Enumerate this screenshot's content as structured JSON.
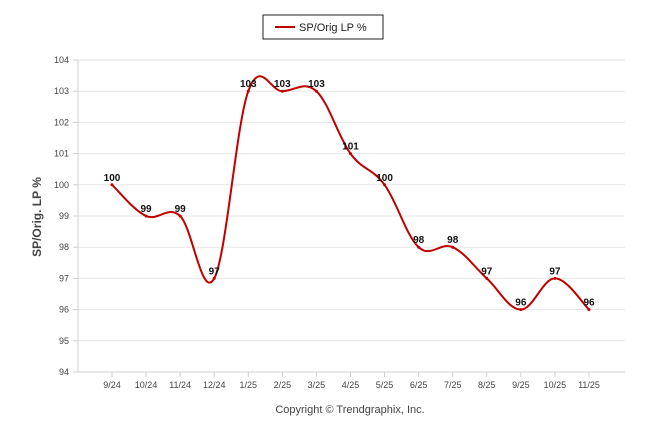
{
  "chart_data": {
    "type": "line",
    "title": "",
    "categories": [
      "9/24",
      "10/24",
      "11/24",
      "12/24",
      "1/25",
      "2/25",
      "3/25",
      "4/25",
      "5/25",
      "6/25",
      "7/25",
      "8/25",
      "9/25",
      "10/25",
      "11/25"
    ],
    "series": [
      {
        "name": "SP/Orig LP %",
        "values": [
          100,
          99,
          99,
          97,
          103,
          103,
          103,
          101,
          100,
          98,
          98,
          97,
          96,
          97,
          96
        ],
        "data_labels": [
          "100",
          "99",
          "99",
          "97",
          "103",
          "103",
          "103",
          "101",
          "100",
          "98",
          "98",
          "97",
          "96",
          "97",
          "96"
        ],
        "color": "#c00000"
      }
    ],
    "xlabel": "",
    "ylabel": "SP/Orig. LP %",
    "ylim": [
      94,
      104
    ],
    "yticks": [
      94,
      95,
      96,
      97,
      98,
      99,
      100,
      101,
      102,
      103,
      104
    ],
    "ytick_labels": [
      "94",
      "95",
      "96",
      "97",
      "98",
      "99",
      "100",
      "101",
      "102",
      "103",
      "104"
    ],
    "grid": true,
    "legend": {
      "position": "top-center",
      "label": "SP/Orig LP %"
    },
    "footer": "Copyright © Trendgraphix, Inc."
  }
}
